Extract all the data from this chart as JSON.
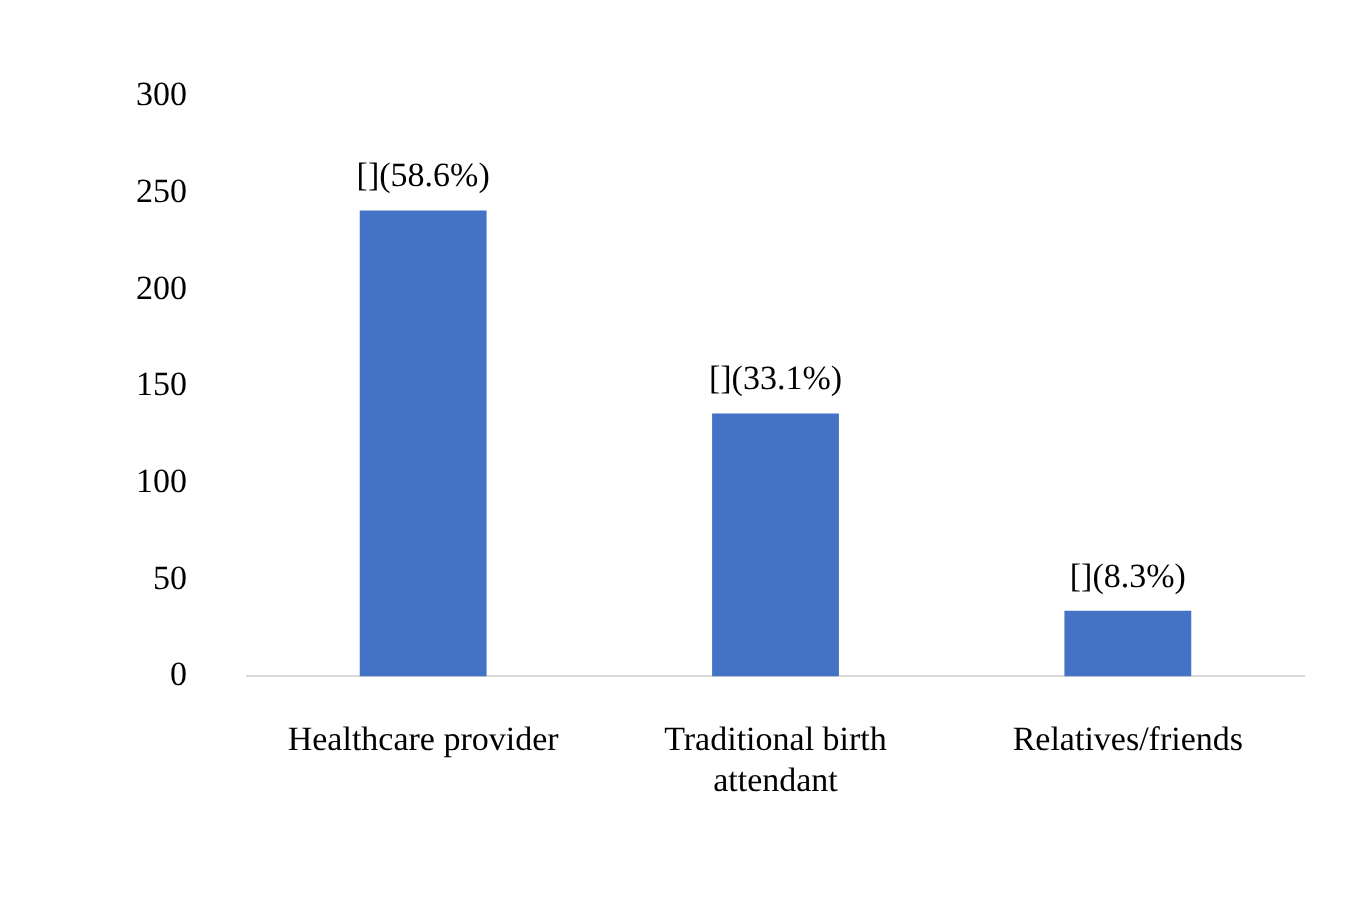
{
  "chart_data": {
    "type": "bar",
    "categories": [
      "Healthcare provider",
      "Traditional birth attendant",
      "Relatives/friends"
    ],
    "values": [
      241,
      136,
      34
    ],
    "color": "#4472c4",
    "annotations": [
      {
        "text": "[](58.6%)",
        "x": "Healthcare provider",
        "y": 241
      },
      {
        "text": "[](33.1%)",
        "x": "Traditional birth attendant",
        "y": 136
      },
      {
        "text": "[](8.3%)",
        "x": "Relatives/friends",
        "y": 34
      }
    ],
    "ylim": [
      0,
      300
    ],
    "yticks": [
      0,
      50,
      100,
      150,
      200,
      250,
      300
    ],
    "grid": false,
    "legend": false
  }
}
